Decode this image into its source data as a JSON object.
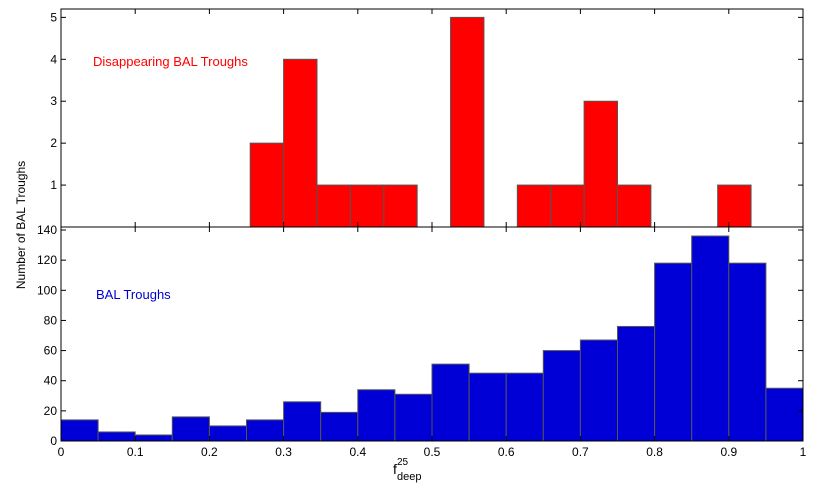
{
  "chart_data": [
    {
      "type": "bar",
      "panel": "top",
      "annotation": "Disappearing BAL Troughs",
      "annotation_color": "#ff0000",
      "bar_color": "#ff0000",
      "bin_width": 0.045,
      "bin_starts": [
        0.255,
        0.3,
        0.345,
        0.39,
        0.435,
        0.525,
        0.615,
        0.66,
        0.705,
        0.75,
        0.885
      ],
      "values": [
        2,
        4,
        1,
        1,
        1,
        5,
        1,
        1,
        3,
        1,
        1
      ],
      "xlim": [
        0,
        1
      ],
      "ylim": [
        0,
        5.2
      ],
      "yticks": [
        1,
        2,
        3,
        4,
        5
      ]
    },
    {
      "type": "bar",
      "panel": "bottom",
      "annotation": "BAL Troughs",
      "annotation_color": "#0000cc",
      "bar_color": "#0000d6",
      "bin_width": 0.05,
      "bin_starts": [
        0.0,
        0.05,
        0.1,
        0.15,
        0.2,
        0.25,
        0.3,
        0.35,
        0.4,
        0.45,
        0.5,
        0.55,
        0.6,
        0.65,
        0.7,
        0.75,
        0.8,
        0.85,
        0.9,
        0.95
      ],
      "values": [
        14,
        6,
        4,
        16,
        10,
        14,
        26,
        19,
        34,
        31,
        51,
        45,
        45,
        60,
        67,
        76,
        118,
        136,
        118,
        35
      ],
      "xlim": [
        0,
        1
      ],
      "ylim": [
        0,
        142
      ],
      "yticks": [
        0,
        20,
        40,
        60,
        80,
        100,
        120,
        140
      ],
      "xticks": [
        0,
        0.1,
        0.2,
        0.3,
        0.4,
        0.5,
        0.6,
        0.7,
        0.8,
        0.9,
        1
      ],
      "xtick_labels": [
        "0",
        "0.1",
        "0.2",
        "0.3",
        "0.4",
        "0.5",
        "0.6",
        "0.7",
        "0.8",
        "0.9",
        "1"
      ]
    }
  ],
  "ylabel": "Number of BAL Troughs",
  "xlabel": {
    "base": "f",
    "superscript": "25",
    "subscript": "deep"
  }
}
